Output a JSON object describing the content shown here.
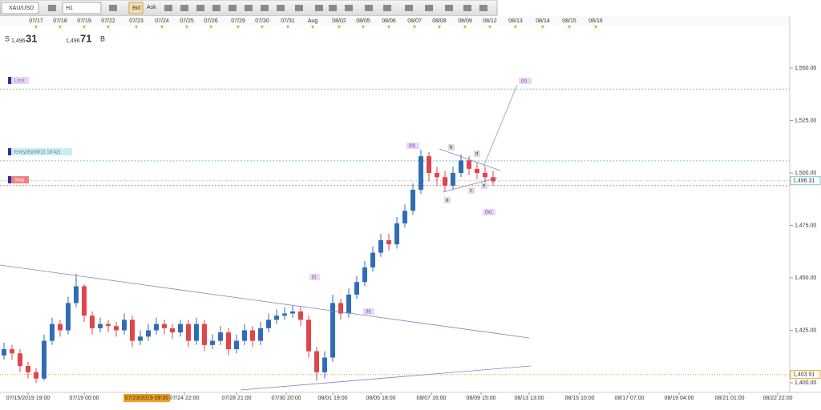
{
  "toolbar": {
    "symbol": "XAU/USD",
    "timeframe": "H1",
    "bid": "Bid",
    "ask": "Ask"
  },
  "quote": {
    "sell_side": "S",
    "sell_big": "1,496",
    "sell_small": "31",
    "buy_big": "1,496",
    "buy_small": "71",
    "buy_side": "B"
  },
  "orders": {
    "limit": "Limit",
    "entry": "Entry(B)(08/11 18:42)",
    "stop": "Stop"
  },
  "waves": {
    "i": "(i)",
    "ii": "(ii)",
    "iii": "(iii)",
    "iv": "(iv)",
    "v": "(v)",
    "a": "a",
    "b": "b",
    "c": "c",
    "d": "d",
    "e": "e"
  },
  "chart_data": {
    "type": "candlestick",
    "up_color": "#2f6db5",
    "down_color": "#e0454a",
    "grid": false,
    "open": [
      1413,
      1416,
      1414,
      1408,
      1405,
      1402,
      1420,
      1428,
      1425,
      1438,
      1446,
      1432,
      1426,
      1428,
      1427,
      1425,
      1430,
      1420,
      1422,
      1425,
      1428,
      1426,
      1424,
      1428,
      1420,
      1428,
      1418,
      1420,
      1424,
      1416,
      1420,
      1425,
      1420,
      1426,
      1430,
      1432,
      1433,
      1434,
      1430,
      1415,
      1405,
      1412,
      1438,
      1433,
      1442,
      1448,
      1455,
      1462,
      1468,
      1466,
      1476,
      1482,
      1492,
      1508,
      1500,
      1498,
      1494,
      1500,
      1506,
      1502,
      1500,
      1498
    ],
    "high": [
      1419,
      1418,
      1416,
      1410,
      1407,
      1423,
      1431,
      1430,
      1441,
      1452,
      1447,
      1434,
      1431,
      1430,
      1429,
      1433,
      1432,
      1425,
      1428,
      1431,
      1430,
      1428,
      1430,
      1430,
      1431,
      1430,
      1423,
      1427,
      1426,
      1423,
      1428,
      1427,
      1429,
      1433,
      1435,
      1436,
      1437,
      1436,
      1432,
      1417,
      1415,
      1442,
      1440,
      1445,
      1451,
      1458,
      1465,
      1471,
      1471,
      1479,
      1485,
      1495,
      1511,
      1510,
      1503,
      1501,
      1503,
      1509,
      1508,
      1505,
      1503,
      1501
    ],
    "low": [
      1411,
      1411,
      1405,
      1402,
      1400,
      1401,
      1418,
      1422,
      1423,
      1436,
      1429,
      1423,
      1424,
      1424,
      1422,
      1423,
      1417,
      1418,
      1420,
      1423,
      1423,
      1421,
      1422,
      1417,
      1418,
      1415,
      1416,
      1418,
      1413,
      1414,
      1418,
      1417,
      1418,
      1424,
      1428,
      1430,
      1431,
      1427,
      1412,
      1401,
      1402,
      1410,
      1430,
      1431,
      1440,
      1446,
      1453,
      1460,
      1463,
      1464,
      1474,
      1480,
      1490,
      1496,
      1494,
      1491,
      1492,
      1498,
      1499,
      1497,
      1495,
      1494
    ],
    "close": [
      1416,
      1414,
      1408,
      1405,
      1402,
      1420,
      1428,
      1425,
      1438,
      1446,
      1432,
      1426,
      1428,
      1427,
      1425,
      1430,
      1420,
      1422,
      1425,
      1428,
      1426,
      1424,
      1428,
      1420,
      1428,
      1418,
      1420,
      1424,
      1416,
      1420,
      1425,
      1420,
      1426,
      1430,
      1432,
      1433,
      1434,
      1430,
      1415,
      1405,
      1412,
      1438,
      1433,
      1442,
      1448,
      1455,
      1462,
      1468,
      1466,
      1476,
      1482,
      1492,
      1508,
      1500,
      1498,
      1494,
      1500,
      1506,
      1502,
      1500,
      1498,
      1496
    ],
    "xlim": [
      -0.5,
      98
    ],
    "ylim": [
      1395.4,
      1569.5
    ],
    "yticks": [
      {
        "value": 1400,
        "label": "1,400.00"
      },
      {
        "value": 1425,
        "label": "1,425.00"
      },
      {
        "value": 1450,
        "label": "1,450.00"
      },
      {
        "value": 1475,
        "label": "1,475.00"
      },
      {
        "value": 1500,
        "label": "1,500.00"
      },
      {
        "value": 1525,
        "label": "1,525.00"
      },
      {
        "value": 1550,
        "label": "1,550.00"
      }
    ],
    "xticks": [
      {
        "value": 3,
        "label": "07/15/2019 19:00"
      },
      {
        "value": 10,
        "label": "07/19 00:00"
      },
      {
        "value": 17.8,
        "label": "07/23/2019 09:00"
      },
      {
        "value": 22.5,
        "label": "07/24 22:00"
      },
      {
        "value": 29,
        "label": "07/28 21:00"
      },
      {
        "value": 35.2,
        "label": "07/30 20:00"
      },
      {
        "value": 41,
        "label": "08/01 19:00"
      },
      {
        "value": 47,
        "label": "08/05 18:00"
      },
      {
        "value": 53.3,
        "label": "08/07 16:00"
      },
      {
        "value": 59.5,
        "label": "08/09 15:00"
      },
      {
        "value": 65.5,
        "label": "08/13 13:00"
      },
      {
        "value": 71.8,
        "label": "08/15 10:00"
      },
      {
        "value": 78,
        "label": "08/17 07:00"
      },
      {
        "value": 84.2,
        "label": "08/19 04:00"
      },
      {
        "value": 90.5,
        "label": "08/21 01:00"
      },
      {
        "value": 96.5,
        "label": "08/22 22:00"
      }
    ],
    "highlight_xtick": 2,
    "top_xticks": [
      {
        "value": 4,
        "label": "07/17"
      },
      {
        "value": 7,
        "label": "07/18"
      },
      {
        "value": 10,
        "label": "07/19"
      },
      {
        "value": 13,
        "label": "07/22"
      },
      {
        "value": 16.5,
        "label": "07/23"
      },
      {
        "value": 19.7,
        "label": "07/24"
      },
      {
        "value": 22.8,
        "label": "07/25"
      },
      {
        "value": 25.8,
        "label": "07/26"
      },
      {
        "value": 29.2,
        "label": "07/29"
      },
      {
        "value": 32.2,
        "label": "07/30"
      },
      {
        "value": 35.4,
        "label": "07/31"
      },
      {
        "value": 38.5,
        "label": "Aug"
      },
      {
        "value": 41.8,
        "label": "08/02"
      },
      {
        "value": 44.8,
        "label": "08/05"
      },
      {
        "value": 48,
        "label": "08/06"
      },
      {
        "value": 51.2,
        "label": "08/07"
      },
      {
        "value": 54.3,
        "label": "08/08"
      },
      {
        "value": 57.5,
        "label": "08/09"
      },
      {
        "value": 60.6,
        "label": "08/12"
      },
      {
        "value": 63.8,
        "label": "08/13"
      },
      {
        "value": 67.2,
        "label": "08/14"
      },
      {
        "value": 70.5,
        "label": "08/15"
      },
      {
        "value": 73.8,
        "label": "08/16"
      }
    ],
    "levels": [
      {
        "value": 1540,
        "color": "#7fc4c8"
      },
      {
        "value": 1505.8,
        "color": "#7fc4c8"
      },
      {
        "value": 1494,
        "color": "#f08080"
      }
    ],
    "price_tags": [
      {
        "value": 1496.31,
        "label": "1,496.31",
        "color": "#7fc4c8"
      },
      {
        "value": 1403.91,
        "label": "1,403.91",
        "color": "#f0a020"
      }
    ]
  }
}
